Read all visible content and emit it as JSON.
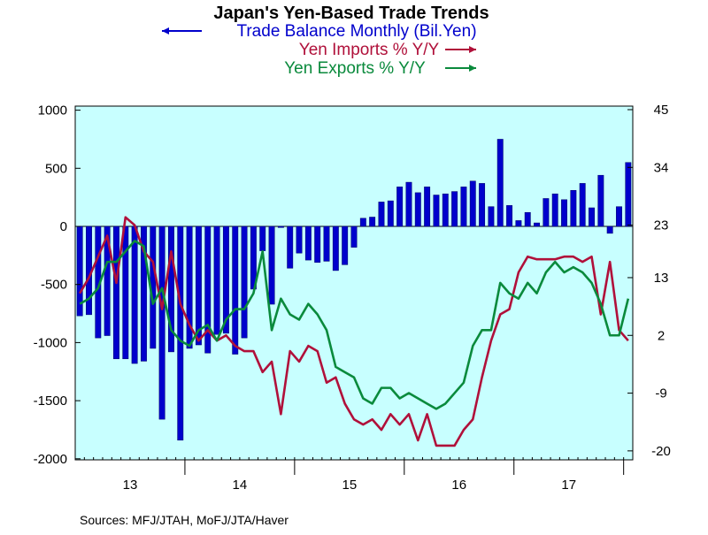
{
  "chart_data": {
    "type": "bar+line",
    "title": "Japan's Yen-Based Trade Trends",
    "legend": [
      {
        "label": "Trade Balance Monthly (Bil.Yen)",
        "arrow": "left",
        "color": "#0000cc"
      },
      {
        "label": "Yen Imports % Y/Y",
        "arrow": "right",
        "color": "#b0103a"
      },
      {
        "label": "Yen Exports % Y/Y",
        "arrow": "right",
        "color": "#0a8a3c"
      }
    ],
    "source": "Sources:  MFJ/JTAH, MoFJ/JTA/Haver",
    "x_labels": [
      "13",
      "14",
      "15",
      "16",
      "17"
    ],
    "left_axis": {
      "ticks": [
        1000,
        500,
        0,
        -500,
        -1000,
        -1500,
        -2000
      ],
      "ylim": [
        -2000,
        1000
      ]
    },
    "right_axis": {
      "ticks": [
        45,
        34,
        23,
        13,
        2,
        -9,
        -20
      ],
      "ylim": [
        -20,
        45
      ]
    },
    "series": [
      {
        "name": "Trade Balance Monthly (Bil.Yen)",
        "type": "bar",
        "axis": "left",
        "color": "#0000cc",
        "values": [
          -770,
          -760,
          -960,
          -940,
          -1140,
          -1140,
          -1180,
          -1160,
          -1050,
          -1660,
          -1080,
          -1840,
          -1050,
          -1020,
          -1090,
          -930,
          -920,
          -1100,
          -960,
          -540,
          -210,
          -670,
          -10,
          -360,
          -230,
          -290,
          -310,
          -300,
          -380,
          -330,
          -180,
          70,
          80,
          210,
          220,
          340,
          380,
          290,
          340,
          270,
          280,
          300,
          340,
          390,
          370,
          170,
          750,
          180,
          50,
          120,
          30,
          240,
          280,
          230,
          310,
          370,
          160,
          440,
          -60,
          170,
          550
        ]
      },
      {
        "name": "Yen Imports % Y/Y",
        "type": "line",
        "axis": "right",
        "color": "#b0103a",
        "values": [
          10,
          13,
          17,
          21,
          12,
          24.5,
          23,
          18,
          16,
          7,
          18,
          8,
          4,
          1,
          3,
          1,
          2,
          0,
          -1,
          -1,
          -5,
          -3,
          -13,
          -1,
          -3,
          0,
          -1,
          -7,
          -6,
          -11,
          -14,
          -15,
          -14,
          -16,
          -13,
          -15,
          -13,
          -18,
          -13,
          -19,
          -19,
          -19,
          -16,
          -14,
          -6,
          1,
          6,
          7,
          14,
          17,
          16.5,
          16.5,
          16.5,
          17,
          17,
          16,
          17,
          6,
          16,
          3,
          1
        ]
      },
      {
        "name": "Yen Exports % Y/Y",
        "type": "line",
        "axis": "right",
        "color": "#0a8a3c",
        "values": [
          8,
          9,
          11,
          16,
          16,
          18,
          20,
          19,
          8,
          11,
          3,
          1,
          0,
          3,
          4,
          1,
          5,
          7,
          7,
          10,
          18,
          3,
          9,
          6,
          5,
          8,
          6,
          3,
          -4,
          -5,
          -6,
          -10,
          -11,
          -8,
          -8,
          -10,
          -9,
          -10,
          -11,
          -12,
          -11,
          -9,
          -7,
          0,
          3,
          3,
          12,
          10,
          9,
          12,
          10,
          14,
          16,
          14,
          15,
          14,
          12,
          8,
          2,
          2,
          9
        ]
      }
    ]
  }
}
